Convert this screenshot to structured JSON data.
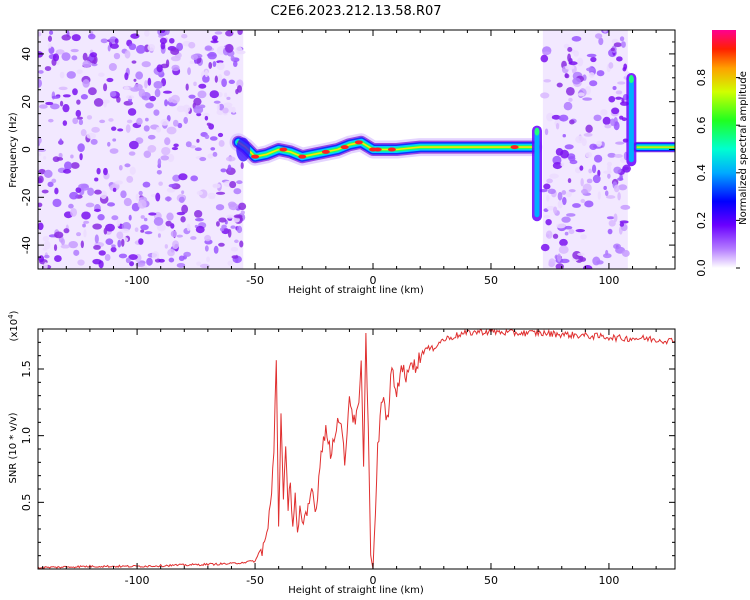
{
  "title": "C2E6.2023.212.13.58.R07",
  "colors": {
    "snr_line": "#e03030",
    "colormap": [
      "#ffffff",
      "#e8d8ff",
      "#c090ff",
      "#8a2be2",
      "#4b0fff",
      "#0000ff",
      "#00c8ff",
      "#00ff90",
      "#40ff00",
      "#ffff00",
      "#ff9000",
      "#ff0000",
      "#ff00a0"
    ]
  },
  "chart_data": [
    {
      "type": "heatmap",
      "title": "C2E6.2023.212.13.58.R07",
      "xlabel": "Height of straight line (km)",
      "ylabel": "Frequency (Hz)",
      "xlim": [
        -142,
        128
      ],
      "ylim": [
        -50,
        50
      ],
      "x_ticks": [
        "-100",
        "-50",
        "0",
        "50",
        "100"
      ],
      "y_ticks": [
        "-40",
        "-20",
        "0",
        "20",
        "40"
      ],
      "colorbar": {
        "label": "Normalized spectral amplitude",
        "range": [
          0,
          1
        ],
        "ticks": [
          "0.0",
          "0.2",
          "0.4",
          "0.6",
          "0.8"
        ]
      },
      "noise_regions_km": [
        [
          -142,
          -55
        ],
        [
          72,
          108
        ]
      ],
      "signal_track": {
        "x": [
          -57,
          -54,
          -50,
          -45,
          -40,
          -35,
          -30,
          -25,
          -20,
          -15,
          -10,
          -5,
          0,
          10,
          20,
          30,
          40,
          50,
          60,
          65,
          68
        ],
        "freq": [
          3,
          1,
          -3,
          -2,
          0,
          -1,
          -3,
          -2,
          -1,
          0,
          2,
          3,
          0,
          0,
          1,
          1,
          1,
          1,
          1,
          1,
          1
        ]
      },
      "spikes": [
        {
          "x": 69.5,
          "freq_range": [
            -30,
            10
          ]
        },
        {
          "x": 109.5,
          "freq_range": [
            -7,
            32
          ]
        }
      ],
      "right_track": {
        "x": [
          112,
          128
        ],
        "freq": [
          1,
          1
        ]
      }
    },
    {
      "type": "line",
      "xlabel": "Height of straight line (km)",
      "ylabel": "SNR (10 * v/v)",
      "axis_multiplier": "(x10",
      "axis_multiplier_exp": "4",
      "axis_multiplier_close": ")",
      "xlim": [
        -142,
        128
      ],
      "ylim": [
        0,
        1.8
      ],
      "x_ticks": [
        "-100",
        "-50",
        "0",
        "50",
        "100"
      ],
      "y_ticks": [
        "0.5",
        "1.0",
        "1.5"
      ],
      "series": [
        {
          "x": [
            -142,
            -120,
            -100,
            -80,
            -60,
            -50,
            -47,
            -45,
            -43,
            -42,
            -41,
            -40,
            -39,
            -38,
            -37,
            -36,
            -35,
            -34,
            -33,
            -32,
            -31,
            -30,
            -28,
            -26,
            -24,
            -22,
            -20,
            -18,
            -16,
            -14,
            -12,
            -10,
            -8,
            -6,
            -5,
            -4,
            -3,
            -2,
            -1,
            0,
            1,
            2,
            3,
            4,
            6,
            8,
            10,
            12,
            14,
            16,
            18,
            20,
            22,
            25,
            28,
            30,
            35,
            40,
            45,
            50,
            60,
            70,
            80,
            90,
            100,
            105,
            110,
            115,
            120,
            128
          ],
          "values": [
            0.01,
            0.02,
            0.02,
            0.03,
            0.04,
            0.06,
            0.15,
            0.25,
            0.55,
            0.9,
            1.6,
            0.3,
            1.2,
            0.5,
            0.9,
            0.4,
            0.7,
            0.3,
            0.6,
            0.25,
            0.45,
            0.3,
            0.4,
            0.6,
            0.45,
            0.9,
            1.05,
            0.85,
            1.05,
            1.15,
            0.8,
            1.3,
            1.1,
            1.2,
            1.55,
            0.75,
            1.75,
            1.1,
            0.1,
            0.0,
            0.4,
            0.9,
            1.1,
            1.3,
            1.1,
            1.5,
            1.3,
            1.55,
            1.4,
            1.6,
            1.5,
            1.6,
            1.65,
            1.65,
            1.7,
            1.72,
            1.75,
            1.77,
            1.78,
            1.78,
            1.77,
            1.77,
            1.76,
            1.75,
            1.74,
            1.73,
            1.73,
            1.73,
            1.72,
            1.71
          ]
        }
      ]
    }
  ]
}
